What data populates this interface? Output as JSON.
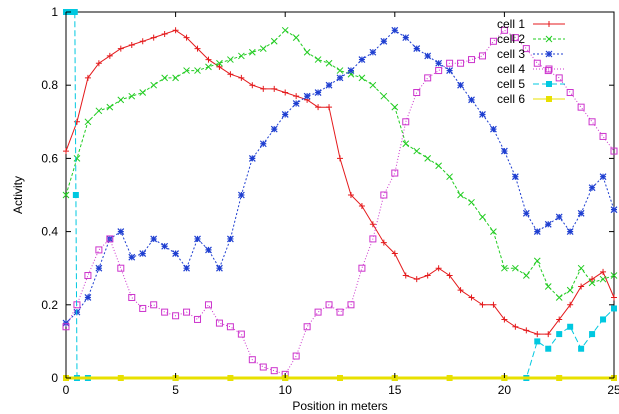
{
  "chart_data": {
    "type": "line",
    "xlabel": "Position in meters",
    "ylabel": "Activity",
    "xlim": [
      0,
      25
    ],
    "ylim": [
      0,
      1
    ],
    "xticks": [
      "0",
      "5",
      "10",
      "15",
      "20",
      "25"
    ],
    "yticks": [
      "0",
      "0.2",
      "0.4",
      "0.6",
      "0.8",
      "1"
    ],
    "legend_position": "top-right",
    "series": [
      {
        "name": "cell 1",
        "color": "#e41a1c",
        "marker": "plus",
        "dash": "",
        "x": [
          0,
          0.5,
          1,
          1.5,
          2,
          2.5,
          3,
          3.5,
          4,
          4.5,
          5,
          5.5,
          6,
          6.5,
          7,
          7.5,
          8,
          8.5,
          9,
          9.5,
          10,
          10.5,
          11,
          11.5,
          12,
          12.5,
          13,
          13.5,
          14,
          14.5,
          15,
          15.5,
          16,
          16.5,
          17,
          17.5,
          18,
          18.5,
          19,
          19.5,
          20,
          20.5,
          21,
          21.5,
          22,
          22.5,
          23,
          23.5,
          24,
          24.5,
          25
        ],
        "y": [
          0.62,
          0.7,
          0.82,
          0.86,
          0.88,
          0.9,
          0.91,
          0.92,
          0.93,
          0.94,
          0.95,
          0.93,
          0.9,
          0.87,
          0.85,
          0.83,
          0.82,
          0.8,
          0.79,
          0.79,
          0.78,
          0.77,
          0.76,
          0.74,
          0.74,
          0.6,
          0.5,
          0.47,
          0.42,
          0.37,
          0.34,
          0.28,
          0.27,
          0.28,
          0.3,
          0.28,
          0.24,
          0.22,
          0.2,
          0.2,
          0.16,
          0.14,
          0.13,
          0.12,
          0.12,
          0.16,
          0.2,
          0.25,
          0.27,
          0.29,
          0.22
        ]
      },
      {
        "name": "cell 2",
        "color": "#22cc22",
        "marker": "x",
        "dash": "3,2",
        "x": [
          0,
          0.5,
          1,
          1.5,
          2,
          2.5,
          3,
          3.5,
          4,
          4.5,
          5,
          5.5,
          6,
          6.5,
          7,
          7.5,
          8,
          8.5,
          9,
          9.5,
          10,
          10.5,
          11,
          11.5,
          12,
          12.5,
          13,
          13.5,
          14,
          14.5,
          15,
          15.5,
          16,
          16.5,
          17,
          17.5,
          18,
          18.5,
          19,
          19.5,
          20,
          20.5,
          21,
          21.5,
          22,
          22.5,
          23,
          23.5,
          24,
          24.5,
          25
        ],
        "y": [
          0.5,
          0.6,
          0.7,
          0.73,
          0.74,
          0.76,
          0.77,
          0.78,
          0.8,
          0.82,
          0.82,
          0.84,
          0.84,
          0.85,
          0.86,
          0.87,
          0.88,
          0.89,
          0.9,
          0.92,
          0.95,
          0.93,
          0.89,
          0.87,
          0.86,
          0.84,
          0.83,
          0.82,
          0.8,
          0.77,
          0.74,
          0.64,
          0.62,
          0.6,
          0.58,
          0.55,
          0.5,
          0.48,
          0.44,
          0.4,
          0.3,
          0.3,
          0.28,
          0.32,
          0.25,
          0.22,
          0.24,
          0.3,
          0.26,
          0.27,
          0.28
        ]
      },
      {
        "name": "cell 3",
        "color": "#1f3fd1",
        "marker": "star",
        "dash": "2,2",
        "x": [
          0,
          0.5,
          1,
          1.5,
          2,
          2.5,
          3,
          3.5,
          4,
          4.5,
          5,
          5.5,
          6,
          6.5,
          7,
          7.5,
          8,
          8.5,
          9,
          9.5,
          10,
          10.5,
          11,
          11.5,
          12,
          12.5,
          13,
          13.5,
          14,
          14.5,
          15,
          15.5,
          16,
          16.5,
          17,
          17.5,
          18,
          18.5,
          19,
          19.5,
          20,
          20.5,
          21,
          21.5,
          22,
          22.5,
          23,
          23.5,
          24,
          24.5,
          25
        ],
        "y": [
          0.15,
          0.18,
          0.22,
          0.3,
          0.38,
          0.4,
          0.33,
          0.34,
          0.38,
          0.36,
          0.34,
          0.3,
          0.38,
          0.35,
          0.3,
          0.38,
          0.5,
          0.6,
          0.64,
          0.68,
          0.72,
          0.75,
          0.77,
          0.78,
          0.8,
          0.82,
          0.84,
          0.87,
          0.89,
          0.92,
          0.95,
          0.93,
          0.9,
          0.88,
          0.86,
          0.84,
          0.8,
          0.76,
          0.72,
          0.68,
          0.62,
          0.55,
          0.45,
          0.4,
          0.42,
          0.44,
          0.4,
          0.45,
          0.52,
          0.55,
          0.46
        ]
      },
      {
        "name": "cell 4",
        "color": "#cc33cc",
        "marker": "square",
        "dash": "1,2",
        "x": [
          0,
          0.5,
          1,
          1.5,
          2,
          2.5,
          3,
          3.5,
          4,
          4.5,
          5,
          5.5,
          6,
          6.5,
          7,
          7.5,
          8,
          8.5,
          9,
          9.5,
          10,
          10.5,
          11,
          11.5,
          12,
          12.5,
          13,
          13.5,
          14,
          14.5,
          15,
          15.5,
          16,
          16.5,
          17,
          17.5,
          18,
          18.5,
          19,
          19.5,
          20,
          20.5,
          21,
          21.5,
          22,
          22.5,
          23,
          23.5,
          24,
          24.5,
          25
        ],
        "y": [
          0.14,
          0.2,
          0.28,
          0.35,
          0.38,
          0.3,
          0.22,
          0.19,
          0.2,
          0.18,
          0.17,
          0.18,
          0.16,
          0.2,
          0.15,
          0.14,
          0.12,
          0.05,
          0.03,
          0.02,
          0.01,
          0.06,
          0.14,
          0.18,
          0.2,
          0.18,
          0.2,
          0.3,
          0.38,
          0.5,
          0.56,
          0.7,
          0.78,
          0.82,
          0.84,
          0.86,
          0.86,
          0.87,
          0.88,
          0.92,
          0.95,
          0.93,
          0.9,
          0.86,
          0.84,
          0.82,
          0.78,
          0.74,
          0.7,
          0.66,
          0.62
        ]
      },
      {
        "name": "cell 5",
        "color": "#00c8e0",
        "marker": "filled-square",
        "dash": "6,3",
        "x": [
          0,
          0.2,
          0.4,
          0.45,
          0.5,
          1,
          5,
          10,
          15,
          20,
          21,
          21.5,
          22,
          22.5,
          23,
          23.5,
          24,
          24.5,
          25
        ],
        "y": [
          1,
          1,
          1,
          0.5,
          0,
          0,
          0,
          0,
          0,
          0,
          0,
          0.1,
          0.08,
          0.12,
          0.14,
          0.08,
          0.12,
          0.16,
          0.19
        ]
      },
      {
        "name": "cell 6",
        "color": "#e8e000",
        "marker": "filled-square",
        "dash": "",
        "x": [
          0,
          2.5,
          5,
          7.5,
          10,
          12.5,
          15,
          17.5,
          20,
          22.5,
          25
        ],
        "y": [
          0,
          0,
          0,
          0,
          0,
          0,
          0,
          0,
          0,
          0,
          0
        ]
      }
    ]
  }
}
